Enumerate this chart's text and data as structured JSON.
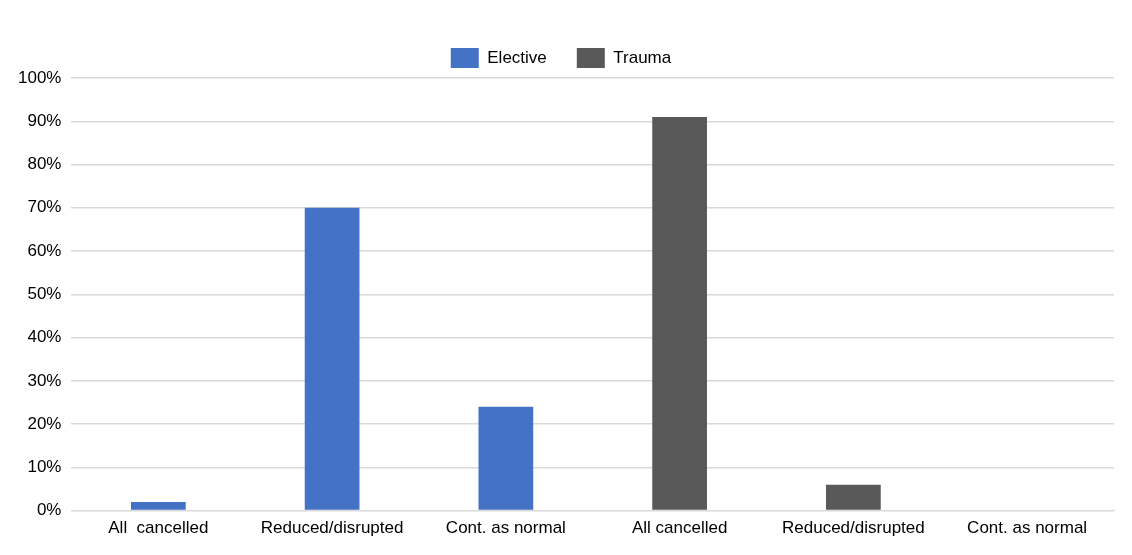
{
  "chart_data": {
    "type": "bar",
    "categories": [
      "All  cancelled",
      "Reduced/disrupted",
      "Cont. as normal",
      "All cancelled",
      "Reduced/disrupted",
      "Cont. as normal"
    ],
    "series": [
      {
        "name": "Elective",
        "color": "#4472c4",
        "values": [
          2,
          70,
          24,
          null,
          null,
          null
        ]
      },
      {
        "name": "Trauma",
        "color": "#595959",
        "values": [
          null,
          null,
          null,
          91,
          6,
          0
        ]
      }
    ],
    "ylim": [
      0,
      100
    ],
    "yticks": [
      {
        "value": 0,
        "label": "0%"
      },
      {
        "value": 10,
        "label": "10%"
      },
      {
        "value": 20,
        "label": "20%"
      },
      {
        "value": 30,
        "label": "30%"
      },
      {
        "value": 40,
        "label": "40%"
      },
      {
        "value": 50,
        "label": "50%"
      },
      {
        "value": 60,
        "label": "60%"
      },
      {
        "value": 70,
        "label": "70%"
      },
      {
        "value": 80,
        "label": "80%"
      },
      {
        "value": 90,
        "label": "90%"
      },
      {
        "value": 100,
        "label": "100%"
      }
    ],
    "grid": "y",
    "legend": "top"
  }
}
